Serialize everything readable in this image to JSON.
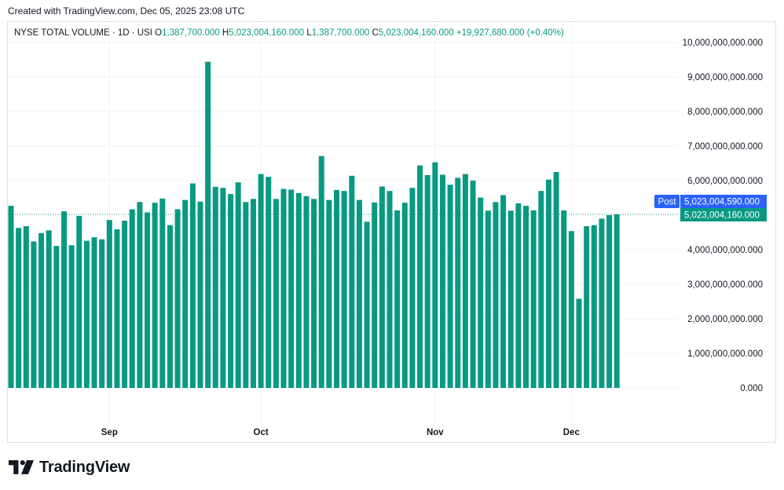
{
  "header": {
    "caption": "Created with TradingView.com, Dec 05, 2025 23:08 UTC"
  },
  "legend": {
    "symbol": "NYSE TOTAL VOLUME · 1D · USI",
    "o_label": "O",
    "o_value": "1,387,700.000",
    "h_label": "H",
    "h_value": "5,023,004,160.000",
    "l_label": "L",
    "l_value": "1,387,700.000",
    "c_label": "C",
    "c_value": "5,023,004,160.000",
    "change": "+19,927,680.000 (+0.40%)"
  },
  "price_axis": {
    "ticks": [
      {
        "value": 0,
        "label": "0.000"
      },
      {
        "value": 1000000000000,
        "label": "1,000,000,000.000"
      },
      {
        "value": 2000000000000,
        "label": "2,000,000,000.000"
      },
      {
        "value": 3000000000000,
        "label": "3,000,000,000.000"
      },
      {
        "value": 4000000000000,
        "label": "4,000,000,000.000"
      },
      {
        "value": 6000000000000,
        "label": "6,000,000,000.000"
      },
      {
        "value": 7000000000000,
        "label": "7,000,000,000.000"
      },
      {
        "value": 8000000000000,
        "label": "8,000,000,000.000"
      },
      {
        "value": 9000000000000,
        "label": "9,000,000,000.000"
      },
      {
        "value": 10000000000000,
        "label": "10,000,000,000.000"
      }
    ]
  },
  "badges": {
    "post_label": "Post",
    "post_value": "5,023,004,590.000",
    "last_value": "5,023,004,160.000"
  },
  "time_axis": {
    "labels": [
      "Sep",
      "Oct",
      "Nov",
      "Dec"
    ]
  },
  "colors": {
    "bar": "#089981",
    "post_badge": "#2962ff",
    "grid": "#f0f3fa",
    "last_line": "#089981",
    "axis_text": "#131722"
  },
  "footer": {
    "brand": "TradingView",
    "logo_icon": "tradingview-logo-icon"
  },
  "chart_data": {
    "type": "bar",
    "title": "NYSE TOTAL VOLUME · 1D · USI",
    "ylim": [
      0,
      10000000000000
    ],
    "last_value": 5023004160000,
    "x_month_labels": [
      "Sep",
      "Oct",
      "Nov",
      "Dec"
    ],
    "values": [
      5270000000000,
      4630000000000,
      4680000000000,
      4240000000000,
      4480000000000,
      4560000000000,
      4110000000000,
      5110000000000,
      4130000000000,
      4980000000000,
      4260000000000,
      4360000000000,
      4300000000000,
      4860000000000,
      4590000000000,
      4840000000000,
      5170000000000,
      5380000000000,
      5080000000000,
      5360000000000,
      5480000000000,
      4710000000000,
      5170000000000,
      5440000000000,
      5920000000000,
      5390000000000,
      9440000000000,
      5820000000000,
      5790000000000,
      5610000000000,
      5950000000000,
      5380000000000,
      5470000000000,
      6190000000000,
      6110000000000,
      5470000000000,
      5760000000000,
      5740000000000,
      5640000000000,
      5550000000000,
      5470000000000,
      6710000000000,
      5440000000000,
      5730000000000,
      5700000000000,
      6140000000000,
      5440000000000,
      4810000000000,
      5370000000000,
      5830000000000,
      5700000000000,
      5140000000000,
      5360000000000,
      5790000000000,
      6440000000000,
      6160000000000,
      6530000000000,
      6170000000000,
      5880000000000,
      6080000000000,
      6190000000000,
      6000000000000,
      5510000000000,
      5130000000000,
      5380000000000,
      5580000000000,
      5130000000000,
      5340000000000,
      5270000000000,
      5140000000000,
      5700000000000,
      6030000000000,
      6250000000000,
      5140000000000,
      4540000000000,
      2580000000000,
      4680000000000,
      4710000000000,
      4900000000000,
      5000000000000,
      5023004160000
    ]
  }
}
